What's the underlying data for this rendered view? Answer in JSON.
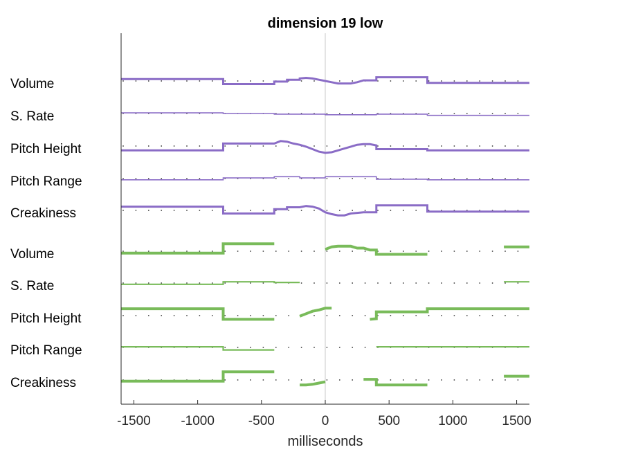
{
  "chart_data": {
    "type": "line",
    "title": "dimension 19 low",
    "xlabel": "milliseconds",
    "ylabel": "",
    "xlim": [
      -1600,
      1600
    ],
    "xticks": [
      -1500,
      -1000,
      -500,
      0,
      500,
      1000,
      1500
    ],
    "grid": false,
    "zero_line": true,
    "colors": {
      "purple": "#8a6cc6",
      "green": "#79bb5a",
      "dots": "#333333",
      "axis": "#262626",
      "zero": "#c8c8c8"
    },
    "rows": [
      {
        "label": "Volume",
        "color": "#8a6cc6",
        "width": 3,
        "segments": [
          [
            [
              -1600,
              0.3
            ],
            [
              -800,
              0.3
            ],
            [
              -800,
              -0.5
            ],
            [
              -400,
              -0.5
            ],
            [
              -400,
              -0.1
            ],
            [
              -300,
              -0.1
            ],
            [
              -300,
              0.2
            ],
            [
              -200,
              0.2
            ],
            [
              -200,
              0.4
            ],
            [
              -150,
              0.5
            ],
            [
              -100,
              0.4
            ],
            [
              -50,
              0.2
            ],
            [
              0,
              0.0
            ],
            [
              50,
              -0.2
            ],
            [
              100,
              -0.4
            ],
            [
              200,
              -0.4
            ],
            [
              250,
              -0.2
            ],
            [
              300,
              0.1
            ],
            [
              400,
              0.1
            ],
            [
              400,
              0.6
            ],
            [
              800,
              0.6
            ],
            [
              800,
              -0.3
            ],
            [
              1600,
              -0.3
            ]
          ]
        ]
      },
      {
        "label": "S. Rate",
        "color": "#8a6cc6",
        "width": 1.6,
        "segments": [
          [
            [
              -1600,
              0.1
            ],
            [
              -800,
              0.1
            ],
            [
              -800,
              0.0
            ],
            [
              -400,
              0.0
            ],
            [
              -400,
              -0.1
            ],
            [
              0,
              -0.1
            ],
            [
              0,
              -0.2
            ],
            [
              400,
              -0.2
            ],
            [
              400,
              -0.1
            ],
            [
              800,
              -0.1
            ],
            [
              800,
              -0.3
            ],
            [
              1600,
              -0.3
            ]
          ]
        ]
      },
      {
        "label": "Pitch Height",
        "color": "#8a6cc6",
        "width": 3,
        "segments": [
          [
            [
              -1600,
              -0.7
            ],
            [
              -800,
              -0.7
            ],
            [
              -800,
              0.4
            ],
            [
              -400,
              0.4
            ],
            [
              -350,
              0.8
            ],
            [
              -300,
              0.7
            ],
            [
              -250,
              0.4
            ],
            [
              -200,
              0.2
            ],
            [
              -150,
              -0.1
            ],
            [
              -100,
              -0.5
            ],
            [
              -50,
              -0.9
            ],
            [
              0,
              -1.1
            ],
            [
              50,
              -1.0
            ],
            [
              100,
              -0.7
            ],
            [
              150,
              -0.4
            ],
            [
              200,
              -0.1
            ],
            [
              250,
              0.2
            ],
            [
              300,
              0.3
            ],
            [
              350,
              0.3
            ],
            [
              400,
              0.1
            ],
            [
              400,
              -0.5
            ],
            [
              800,
              -0.5
            ],
            [
              800,
              -0.7
            ],
            [
              1600,
              -0.7
            ]
          ]
        ]
      },
      {
        "label": "Pitch Range",
        "color": "#8a6cc6",
        "width": 1.6,
        "segments": [
          [
            [
              -1600,
              -0.2
            ],
            [
              -800,
              -0.2
            ],
            [
              -800,
              0.1
            ],
            [
              -400,
              0.1
            ],
            [
              -400,
              0.3
            ],
            [
              -200,
              0.3
            ],
            [
              -200,
              0.1
            ],
            [
              0,
              0.1
            ],
            [
              0,
              0.3
            ],
            [
              400,
              0.3
            ],
            [
              400,
              -0.1
            ],
            [
              800,
              -0.1
            ],
            [
              800,
              -0.2
            ],
            [
              1600,
              -0.2
            ]
          ]
        ]
      },
      {
        "label": "Creakiness",
        "color": "#8a6cc6",
        "width": 3,
        "segments": [
          [
            [
              -1600,
              0.6
            ],
            [
              -800,
              0.6
            ],
            [
              -800,
              -0.5
            ],
            [
              -400,
              -0.5
            ],
            [
              -400,
              0.2
            ],
            [
              -300,
              0.2
            ],
            [
              -300,
              0.5
            ],
            [
              -200,
              0.5
            ],
            [
              -150,
              0.7
            ],
            [
              -100,
              0.6
            ],
            [
              -50,
              0.3
            ],
            [
              0,
              -0.3
            ],
            [
              50,
              -0.6
            ],
            [
              100,
              -0.8
            ],
            [
              150,
              -0.8
            ],
            [
              200,
              -0.5
            ],
            [
              300,
              -0.3
            ],
            [
              400,
              -0.3
            ],
            [
              400,
              0.8
            ],
            [
              800,
              0.8
            ],
            [
              800,
              -0.2
            ],
            [
              1600,
              -0.2
            ]
          ]
        ]
      },
      {
        "label": "Volume",
        "color": "#79bb5a",
        "width": 4,
        "segments": [
          [
            [
              -1600,
              -0.3
            ],
            [
              -800,
              -0.3
            ],
            [
              -800,
              1.2
            ],
            [
              -400,
              1.2
            ]
          ],
          [
            [
              0,
              0.3
            ],
            [
              50,
              0.7
            ],
            [
              100,
              0.8
            ],
            [
              200,
              0.8
            ],
            [
              250,
              0.5
            ],
            [
              300,
              0.5
            ],
            [
              350,
              0.2
            ],
            [
              400,
              0.2
            ],
            [
              400,
              -0.5
            ],
            [
              800,
              -0.5
            ]
          ],
          [
            [
              1400,
              0.7
            ],
            [
              1600,
              0.7
            ]
          ]
        ]
      },
      {
        "label": "S. Rate",
        "color": "#79bb5a",
        "width": 2.2,
        "segments": [
          [
            [
              -1600,
              -0.2
            ],
            [
              -800,
              -0.2
            ],
            [
              -800,
              0.2
            ],
            [
              -400,
              0.2
            ],
            [
              -400,
              0.1
            ],
            [
              -200,
              0.1
            ]
          ],
          [
            [
              1400,
              0.2
            ],
            [
              1600,
              0.2
            ]
          ]
        ]
      },
      {
        "label": "Pitch Height",
        "color": "#79bb5a",
        "width": 4,
        "segments": [
          [
            [
              -1600,
              1.1
            ],
            [
              -800,
              1.1
            ],
            [
              -800,
              -0.6
            ],
            [
              -400,
              -0.6
            ]
          ],
          [
            [
              -200,
              -0.1
            ],
            [
              -150,
              0.3
            ],
            [
              -100,
              0.7
            ],
            [
              -50,
              0.9
            ],
            [
              0,
              1.2
            ],
            [
              50,
              1.2
            ]
          ],
          [
            [
              350,
              -0.6
            ],
            [
              400,
              -0.5
            ],
            [
              400,
              0.6
            ],
            [
              800,
              0.6
            ],
            [
              800,
              1.1
            ],
            [
              1600,
              1.1
            ]
          ]
        ]
      },
      {
        "label": "Pitch Range",
        "color": "#79bb5a",
        "width": 2.2,
        "segments": [
          [
            [
              -1600,
              0.1
            ],
            [
              -800,
              0.1
            ],
            [
              -800,
              -0.4
            ],
            [
              -400,
              -0.4
            ]
          ],
          [
            [
              400,
              0.1
            ],
            [
              1600,
              0.1
            ]
          ]
        ]
      },
      {
        "label": "Creakiness",
        "color": "#79bb5a",
        "width": 4,
        "segments": [
          [
            [
              -1600,
              -0.2
            ],
            [
              -800,
              -0.2
            ],
            [
              -800,
              1.3
            ],
            [
              -400,
              1.3
            ]
          ],
          [
            [
              -200,
              -0.8
            ],
            [
              -150,
              -0.8
            ],
            [
              -100,
              -0.7
            ],
            [
              -50,
              -0.5
            ],
            [
              0,
              -0.3
            ]
          ],
          [
            [
              300,
              0.1
            ],
            [
              400,
              0.1
            ],
            [
              400,
              -0.8
            ],
            [
              800,
              -0.8
            ]
          ],
          [
            [
              1400,
              0.6
            ],
            [
              1600,
              0.6
            ]
          ]
        ]
      }
    ]
  }
}
